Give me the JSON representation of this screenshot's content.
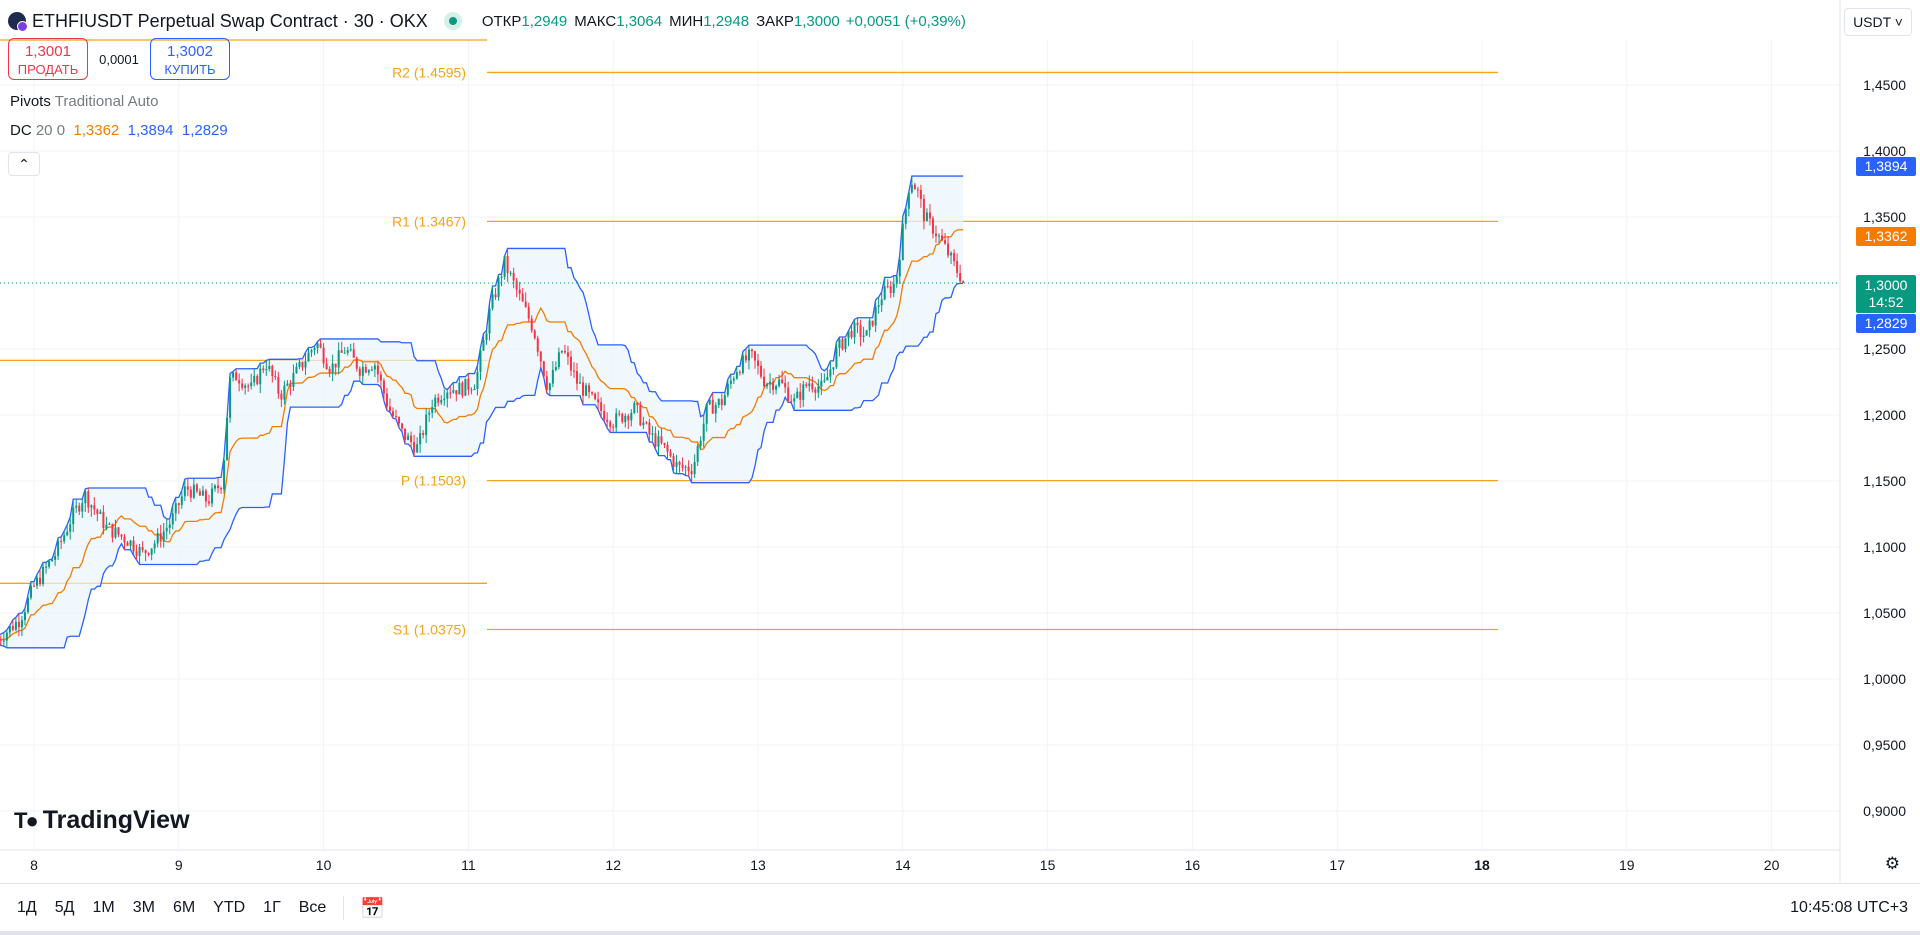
{
  "header": {
    "symbol_title": "ETHFIUSDT Perpetual Swap Contract · 30 · OKX",
    "ohlc": [
      {
        "key": "ОТКР",
        "value": "1,2949"
      },
      {
        "key": "МАКС",
        "value": "1,3064"
      },
      {
        "key": "МИН",
        "value": "1,2948"
      },
      {
        "key": "ЗАКР",
        "value": "1,3000"
      }
    ],
    "change": "+0,0051 (+0,39%)"
  },
  "trade": {
    "sell_price": "1,3001",
    "sell_label": "ПРОДАТЬ",
    "spread": "0,0001",
    "buy_price": "1,3002",
    "buy_label": "КУПИТЬ"
  },
  "indicators": {
    "pivots_name": "Pivots",
    "pivots_params": "Traditional Auto",
    "dc_name": "DC",
    "dc_params": "20 0",
    "dc_mid": "1,3362",
    "dc_upper": "1,3894",
    "dc_lower": "1,2829",
    "collapse_icon": "chevron-up-icon"
  },
  "axis": {
    "unit": "USDT",
    "price_ticks": [
      "1,4500",
      "1,4000",
      "1,3500",
      "1,3000",
      "1,2500",
      "1,2000",
      "1,1500",
      "1,1000",
      "1,0500",
      "1,0000",
      "0,9500",
      "0,9000"
    ],
    "tag_upper": "1,3894",
    "tag_mid": "1,3362",
    "tag_last": "1,3000",
    "tag_countdown": "14:52",
    "tag_lower": "1,2829",
    "date_ticks": [
      "8",
      "9",
      "10",
      "11",
      "12",
      "13",
      "14",
      "15",
      "16",
      "17",
      "18",
      "19",
      "20"
    ]
  },
  "bottom": {
    "ranges": [
      "1Д",
      "5Д",
      "1М",
      "3М",
      "6М",
      "YTD",
      "1Г",
      "Все"
    ],
    "time": "10:45:08 UTC+3"
  },
  "logo_text": "TradingView",
  "colors": {
    "up": "#089981",
    "down": "#f23645",
    "pivot": "#f7a21b",
    "dc_band": "#2962ff",
    "dc_mid": "#f57c00",
    "dc_fill": "#eaf3fc"
  },
  "chart_data": {
    "type": "candlestick",
    "title": "ETHFIUSDT Perpetual Swap Contract · 30 · OKX",
    "x_ticks": [
      "8",
      "9",
      "10",
      "11",
      "12",
      "13",
      "14",
      "15",
      "16",
      "17",
      "18",
      "19",
      "20"
    ],
    "ylim": [
      0.88,
      1.48
    ],
    "pivot_levels": [
      {
        "label": "R2 (1.4595)",
        "value": 1.4595
      },
      {
        "label": "R1 (1.3467)",
        "value": 1.3467
      },
      {
        "label": "P (1.1503)",
        "value": 1.1503
      },
      {
        "label": "S1 (1.0375)",
        "value": 1.0375
      }
    ],
    "previous_period_levels": [
      1.2414,
      1.0725
    ],
    "last_price": 1.3,
    "path": [
      {
        "d": 7.75,
        "p": 1.03
      },
      {
        "d": 7.9,
        "p": 1.045
      },
      {
        "d": 8.0,
        "p": 1.07
      },
      {
        "d": 8.15,
        "p": 1.095
      },
      {
        "d": 8.25,
        "p": 1.12
      },
      {
        "d": 8.35,
        "p": 1.14
      },
      {
        "d": 8.5,
        "p": 1.115
      },
      {
        "d": 8.65,
        "p": 1.105
      },
      {
        "d": 8.75,
        "p": 1.095
      },
      {
        "d": 8.85,
        "p": 1.105
      },
      {
        "d": 8.95,
        "p": 1.12
      },
      {
        "d": 9.05,
        "p": 1.145
      },
      {
        "d": 9.2,
        "p": 1.135
      },
      {
        "d": 9.3,
        "p": 1.15
      },
      {
        "d": 9.35,
        "p": 1.225
      },
      {
        "d": 9.4,
        "p": 1.23
      },
      {
        "d": 9.5,
        "p": 1.22
      },
      {
        "d": 9.6,
        "p": 1.24
      },
      {
        "d": 9.7,
        "p": 1.215
      },
      {
        "d": 9.8,
        "p": 1.23
      },
      {
        "d": 9.95,
        "p": 1.255
      },
      {
        "d": 10.05,
        "p": 1.235
      },
      {
        "d": 10.15,
        "p": 1.25
      },
      {
        "d": 10.25,
        "p": 1.235
      },
      {
        "d": 10.35,
        "p": 1.24
      },
      {
        "d": 10.45,
        "p": 1.205
      },
      {
        "d": 10.55,
        "p": 1.185
      },
      {
        "d": 10.65,
        "p": 1.175
      },
      {
        "d": 10.75,
        "p": 1.21
      },
      {
        "d": 10.85,
        "p": 1.22
      },
      {
        "d": 10.95,
        "p": 1.22
      },
      {
        "d": 11.05,
        "p": 1.225
      },
      {
        "d": 11.15,
        "p": 1.28
      },
      {
        "d": 11.25,
        "p": 1.315
      },
      {
        "d": 11.35,
        "p": 1.29
      },
      {
        "d": 11.45,
        "p": 1.265
      },
      {
        "d": 11.55,
        "p": 1.22
      },
      {
        "d": 11.65,
        "p": 1.25
      },
      {
        "d": 11.75,
        "p": 1.225
      },
      {
        "d": 11.9,
        "p": 1.205
      },
      {
        "d": 12.0,
        "p": 1.195
      },
      {
        "d": 12.15,
        "p": 1.205
      },
      {
        "d": 12.25,
        "p": 1.185
      },
      {
        "d": 12.35,
        "p": 1.175
      },
      {
        "d": 12.45,
        "p": 1.16
      },
      {
        "d": 12.55,
        "p": 1.16
      },
      {
        "d": 12.65,
        "p": 1.205
      },
      {
        "d": 12.75,
        "p": 1.21
      },
      {
        "d": 12.85,
        "p": 1.235
      },
      {
        "d": 12.95,
        "p": 1.245
      },
      {
        "d": 13.05,
        "p": 1.225
      },
      {
        "d": 13.15,
        "p": 1.225
      },
      {
        "d": 13.25,
        "p": 1.21
      },
      {
        "d": 13.35,
        "p": 1.225
      },
      {
        "d": 13.45,
        "p": 1.22
      },
      {
        "d": 13.55,
        "p": 1.25
      },
      {
        "d": 13.65,
        "p": 1.265
      },
      {
        "d": 13.75,
        "p": 1.26
      },
      {
        "d": 13.85,
        "p": 1.29
      },
      {
        "d": 13.95,
        "p": 1.3
      },
      {
        "d": 14.05,
        "p": 1.38
      },
      {
        "d": 14.1,
        "p": 1.37
      },
      {
        "d": 14.15,
        "p": 1.35
      },
      {
        "d": 14.22,
        "p": 1.34
      },
      {
        "d": 14.3,
        "p": 1.325
      },
      {
        "d": 14.37,
        "p": 1.31
      },
      {
        "d": 14.43,
        "p": 1.3
      }
    ]
  }
}
